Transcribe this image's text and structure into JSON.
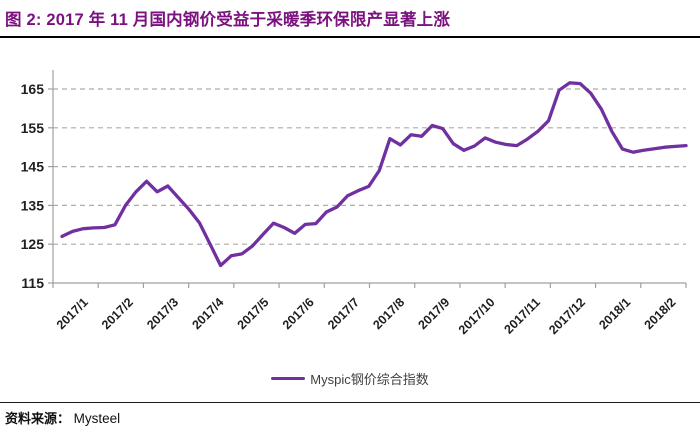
{
  "header": {
    "title": "图 2:  2017 年 11 月国内钢价受益于采暖季环保限产显著上涨"
  },
  "legend": {
    "label": "Myspic钢价综合指数"
  },
  "footer": {
    "source_label": "资料来源：",
    "source_value": "Mysteel"
  },
  "colors": {
    "series": "#7030A0",
    "title": "#7B117E",
    "grid": "#ACACAC",
    "axis": "#A0A0A0",
    "tick_label": "#1F1F1F",
    "legend_text": "#404040"
  },
  "chart_data": {
    "type": "line",
    "title": "",
    "xlabel": "",
    "ylabel": "",
    "frequency": "weekly",
    "grid": "horizontal-dashed",
    "legend_position": "bottom",
    "ylim": [
      115,
      169
    ],
    "y_ticks": [
      115,
      125,
      135,
      145,
      155,
      165
    ],
    "x_labels": [
      "2017/1",
      "2017/2",
      "2017/3",
      "2017/4",
      "2017/5",
      "2017/6",
      "2017/7",
      "2017/8",
      "2017/9",
      "2017/10",
      "2017/11",
      "2017/12",
      "2018/1",
      "2018/2"
    ],
    "series": [
      {
        "name": "Myspic钢价综合指数",
        "color": "#7030A0",
        "values": [
          127,
          128.3,
          129,
          129.2,
          129.3,
          130,
          135,
          138.5,
          141.2,
          138.5,
          140,
          137,
          134,
          130.5,
          125,
          119.5,
          122,
          122.5,
          124.5,
          127.5,
          130.4,
          129.3,
          127.8,
          130.1,
          130.3,
          133.3,
          134.6,
          137.5,
          138.8,
          139.9,
          144,
          152.2,
          150.6,
          153.2,
          152.8,
          155.6,
          154.8,
          150.9,
          149.2,
          150.3,
          152.4,
          151.3,
          150.7,
          150.4,
          152.1,
          154.1,
          156.8,
          164.7,
          166.6,
          166.4,
          163.9,
          159.8,
          154,
          149.5,
          148.7,
          149.2,
          149.6,
          150,
          150.2,
          150.4
        ]
      }
    ]
  }
}
